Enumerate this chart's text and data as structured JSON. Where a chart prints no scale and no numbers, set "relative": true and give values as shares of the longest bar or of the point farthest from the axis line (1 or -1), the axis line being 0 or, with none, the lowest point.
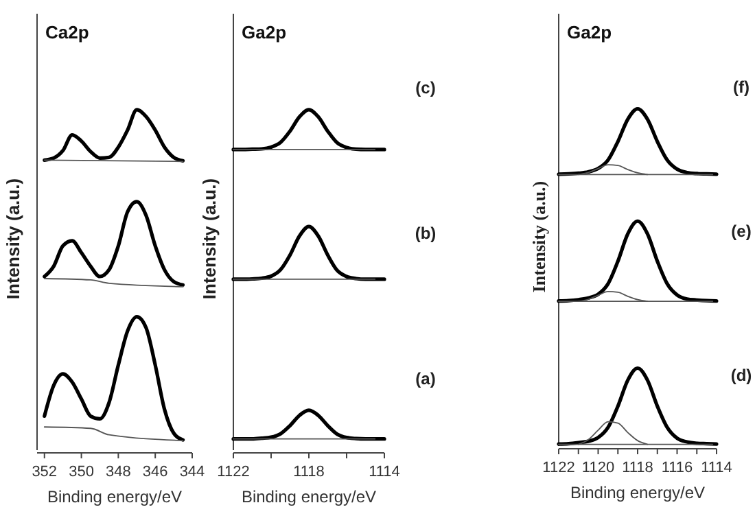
{
  "chart_data": [
    {
      "type": "line",
      "title": "Ca2p",
      "xlabel": "Binding energy/eV",
      "ylabel": "Intensity (a.u.)",
      "relative": true,
      "tick_labels": "x",
      "x": [
        352,
        351.5,
        351,
        350.5,
        350,
        349.5,
        349,
        348.5,
        348,
        347.5,
        347,
        346.5,
        346,
        345.5,
        345,
        344.5
      ],
      "xlim": [
        352.4,
        344
      ],
      "xticks": [
        352,
        350,
        348,
        346,
        344
      ],
      "series": [
        {
          "color": "#000000",
          "values": [
            0.852,
            0.858,
            0.88,
            0.926,
            0.908,
            0.877,
            0.858,
            0.86,
            0.89,
            0.94,
            1.0,
            0.98,
            0.94,
            0.89,
            0.86,
            0.85
          ]
        },
        {
          "color": "#555555",
          "x": [
            352,
            344.5
          ],
          "values": [
            0.852,
            0.848
          ]
        },
        {
          "color": "#000000",
          "values": [
            0.51,
            0.54,
            0.6,
            0.615,
            0.58,
            0.54,
            0.51,
            0.53,
            0.6,
            0.7,
            0.73,
            0.69,
            0.6,
            0.53,
            0.495,
            0.485
          ]
        },
        {
          "color": "#555555",
          "x": [
            352,
            349.5,
            348.5,
            344.5
          ],
          "values": [
            0.504,
            0.5,
            0.49,
            0.48
          ]
        },
        {
          "color": "#000000",
          "values": [
            0.1,
            0.19,
            0.224,
            0.2,
            0.15,
            0.1,
            0.092,
            0.14,
            0.25,
            0.35,
            0.392,
            0.36,
            0.25,
            0.12,
            0.05,
            0.03
          ]
        },
        {
          "color": "#555555",
          "x": [
            352,
            349.5,
            348.5,
            344.5
          ],
          "values": [
            0.068,
            0.064,
            0.045,
            0.028
          ]
        }
      ]
    },
    {
      "type": "line",
      "title": "Ga2p",
      "xlabel": "Binding energy/eV",
      "ylabel": "Intensity (a.u.)",
      "relative": true,
      "tick_labels": "x",
      "annotations": [
        "(c)",
        "(b)",
        "(a)"
      ],
      "x": [
        1122,
        1121.5,
        1121,
        1120.5,
        1120,
        1119.5,
        1119,
        1118.5,
        1118,
        1117.5,
        1117,
        1116.5,
        1116,
        1115.5,
        1115,
        1114.5,
        1114
      ],
      "xlim": [
        1122,
        1114
      ],
      "xticks": [
        1122,
        {
          "value": 1120,
          "label": null
        },
        1118,
        {
          "value": 1116,
          "label": null
        },
        1114
      ],
      "series": [
        {
          "color": "#000000",
          "values": [
            0.883,
            0.883,
            0.884,
            0.885,
            0.89,
            0.904,
            0.937,
            0.979,
            1.0,
            0.979,
            0.937,
            0.903,
            0.889,
            0.884,
            0.883,
            0.883,
            0.883
          ]
        },
        {
          "color": "#555555",
          "x": [
            1122,
            1114.5
          ],
          "values": [
            0.883,
            0.883
          ]
        },
        {
          "color": "#000000",
          "values": [
            0.502,
            0.502,
            0.503,
            0.505,
            0.511,
            0.53,
            0.573,
            0.629,
            0.657,
            0.629,
            0.573,
            0.528,
            0.51,
            0.504,
            0.502,
            0.502,
            0.502
          ]
        },
        {
          "color": "#555555",
          "x": [
            1122,
            1114.5
          ],
          "values": [
            0.502,
            0.502
          ]
        },
        {
          "color": "#000000",
          "values": [
            0.033,
            0.033,
            0.033,
            0.035,
            0.038,
            0.048,
            0.072,
            0.102,
            0.117,
            0.102,
            0.072,
            0.047,
            0.037,
            0.034,
            0.033,
            0.033,
            0.033
          ]
        },
        {
          "color": "#555555",
          "x": [
            1122,
            1114.5
          ],
          "values": [
            0.033,
            0.033
          ]
        }
      ]
    },
    {
      "type": "line",
      "title": "Ga2p",
      "xlabel": "Binding energy/eV",
      "ylabel": "Intensity (a.u.)",
      "relative": true,
      "tick_labels": "x",
      "annotations": [
        "(f)",
        "(e)",
        "(d)"
      ],
      "x": [
        1122,
        1121.5,
        1121,
        1120.5,
        1120,
        1119.5,
        1119,
        1118.5,
        1118,
        1117.5,
        1117,
        1116.5,
        1116,
        1115.5,
        1115,
        1114.5,
        1114
      ],
      "xlim": [
        1122,
        1114
      ],
      "xticks": [
        1122,
        {
          "value": 1121,
          "label": null
        },
        1120,
        {
          "value": 1119,
          "label": null
        },
        1118,
        {
          "value": 1117,
          "label": null
        },
        1116,
        {
          "value": 1115,
          "label": null
        },
        1114
      ],
      "series": [
        {
          "color": "#000000",
          "values": [
            0.806,
            0.807,
            0.809,
            0.813,
            0.823,
            0.848,
            0.903,
            0.969,
            1.0,
            0.969,
            0.903,
            0.848,
            0.821,
            0.811,
            0.808,
            0.807,
            0.806
          ]
        },
        {
          "color": "#555555",
          "x": [
            1122,
            1114.2
          ],
          "values": [
            0.805,
            0.805
          ]
        },
        {
          "color": "#555555",
          "x": [
            1121,
            1120.5,
            1120,
            1119.5,
            1119,
            1118.5,
            1118,
            1117.5
          ],
          "values": [
            0.805,
            0.811,
            0.823,
            0.834,
            0.832,
            0.82,
            0.81,
            0.805
          ]
        },
        {
          "color": "#000000",
          "values": [
            0.43,
            0.431,
            0.434,
            0.439,
            0.45,
            0.481,
            0.548,
            0.629,
            0.667,
            0.629,
            0.548,
            0.481,
            0.448,
            0.436,
            0.433,
            0.431,
            0.43
          ]
        },
        {
          "color": "#555555",
          "x": [
            1122,
            1114.2
          ],
          "values": [
            0.429,
            0.429
          ]
        },
        {
          "color": "#555555",
          "x": [
            1121,
            1120.5,
            1120,
            1119.5,
            1119,
            1118.5,
            1118,
            1117.5
          ],
          "values": [
            0.429,
            0.435,
            0.447,
            0.458,
            0.456,
            0.444,
            0.434,
            0.429
          ]
        },
        {
          "color": "#000000",
          "values": [
            0.006,
            0.007,
            0.01,
            0.014,
            0.025,
            0.055,
            0.118,
            0.195,
            0.231,
            0.195,
            0.118,
            0.055,
            0.023,
            0.012,
            0.008,
            0.007,
            0.006
          ]
        },
        {
          "color": "#555555",
          "x": [
            1122,
            1114.2
          ],
          "values": [
            0.005,
            0.005
          ]
        },
        {
          "color": "#555555",
          "x": [
            1121,
            1120.5,
            1120,
            1119.5,
            1119,
            1118.5,
            1118,
            1117.5
          ],
          "values": [
            0.005,
            0.019,
            0.047,
            0.072,
            0.068,
            0.04,
            0.016,
            0.005
          ]
        }
      ]
    }
  ]
}
